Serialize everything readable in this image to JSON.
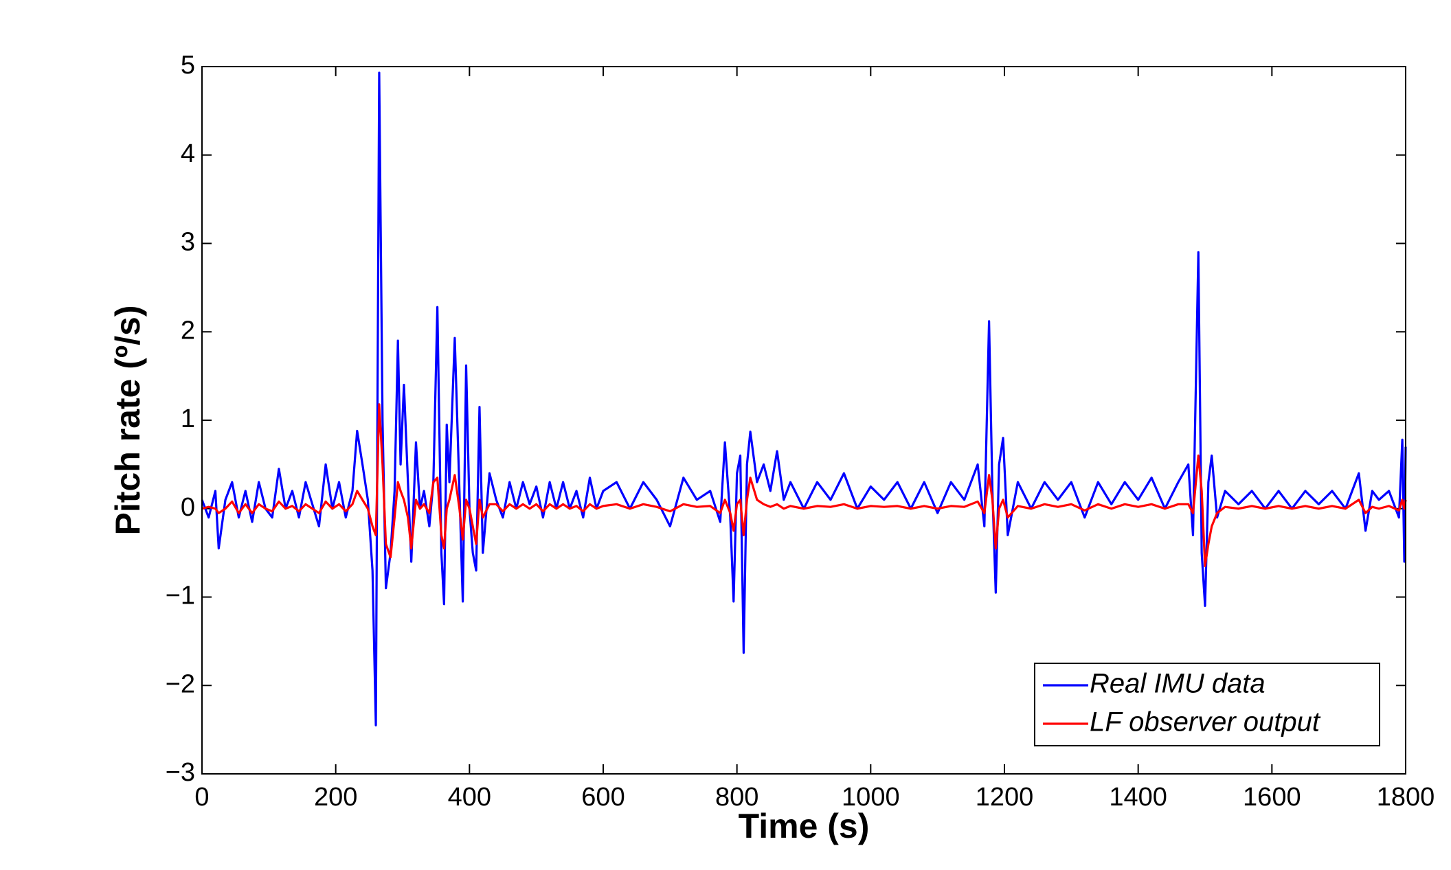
{
  "chart_data": {
    "type": "line",
    "xlabel": "Time (s)",
    "ylabel": "Pitch rate (º/s)",
    "xlim": [
      0,
      1800
    ],
    "ylim": [
      -3,
      5
    ],
    "xticks": [
      0,
      200,
      400,
      600,
      800,
      1000,
      1200,
      1400,
      1600,
      1800
    ],
    "yticks": [
      {
        "value": -3,
        "label": "−3"
      },
      {
        "value": -2,
        "label": "−2"
      },
      {
        "value": -1,
        "label": "−1"
      },
      0,
      1,
      2,
      3,
      4,
      5
    ],
    "grid": false,
    "legend": "lower right",
    "x": [
      0,
      10,
      20,
      25,
      35,
      45,
      55,
      65,
      75,
      85,
      95,
      105,
      115,
      125,
      135,
      145,
      155,
      165,
      175,
      185,
      195,
      205,
      215,
      225,
      232,
      240,
      248,
      255,
      260,
      265,
      270,
      275,
      282,
      288,
      293,
      297,
      302,
      308,
      313,
      320,
      326,
      332,
      340,
      346,
      352,
      358,
      362,
      366,
      370,
      378,
      385,
      390,
      395,
      400,
      405,
      410,
      415,
      420,
      430,
      440,
      450,
      460,
      470,
      480,
      490,
      500,
      510,
      520,
      530,
      540,
      550,
      560,
      570,
      580,
      590,
      600,
      620,
      640,
      660,
      680,
      700,
      720,
      740,
      760,
      775,
      782,
      790,
      795,
      800,
      805,
      810,
      815,
      820,
      830,
      840,
      850,
      860,
      870,
      880,
      900,
      920,
      940,
      960,
      980,
      1000,
      1020,
      1040,
      1060,
      1080,
      1100,
      1120,
      1140,
      1160,
      1170,
      1177,
      1182,
      1187,
      1192,
      1198,
      1205,
      1220,
      1240,
      1260,
      1280,
      1300,
      1320,
      1340,
      1360,
      1380,
      1400,
      1420,
      1440,
      1460,
      1475,
      1482,
      1490,
      1495,
      1500,
      1505,
      1510,
      1518,
      1530,
      1550,
      1570,
      1590,
      1610,
      1630,
      1650,
      1670,
      1690,
      1710,
      1730,
      1740,
      1750,
      1760,
      1775,
      1790,
      1795,
      1798,
      1800
    ],
    "series": [
      {
        "name": "Real IMU data",
        "color": "#0000ff",
        "values": [
          0.1,
          -0.1,
          0.2,
          -0.45,
          0.1,
          0.3,
          -0.1,
          0.2,
          -0.15,
          0.3,
          0,
          -0.1,
          0.45,
          0,
          0.2,
          -0.1,
          0.3,
          0.05,
          -0.2,
          0.5,
          0,
          0.3,
          -0.1,
          0.2,
          0.88,
          0.5,
          0.1,
          -0.7,
          -2.45,
          4.93,
          1.0,
          -0.9,
          -0.5,
          0.2,
          1.9,
          0.5,
          1.4,
          0.3,
          -0.6,
          0.75,
          0,
          0.2,
          -0.2,
          0.3,
          2.28,
          -0.5,
          -1.08,
          0.95,
          0.3,
          1.93,
          0.2,
          -1.05,
          1.62,
          0,
          -0.5,
          -0.7,
          1.15,
          -0.5,
          0.4,
          0.1,
          -0.1,
          0.3,
          0,
          0.3,
          0.05,
          0.25,
          -0.1,
          0.3,
          0,
          0.3,
          0,
          0.2,
          -0.1,
          0.35,
          0,
          0.2,
          0.3,
          0,
          0.3,
          0.1,
          -0.2,
          0.35,
          0.1,
          0.2,
          -0.15,
          0.75,
          -0.1,
          -1.05,
          0.4,
          0.6,
          -1.63,
          0.5,
          0.87,
          0.3,
          0.5,
          0.2,
          0.65,
          0.1,
          0.3,
          0,
          0.3,
          0.1,
          0.4,
          0,
          0.25,
          0.1,
          0.3,
          0,
          0.3,
          -0.05,
          0.3,
          0.1,
          0.5,
          -0.2,
          2.12,
          0.2,
          -0.95,
          0.5,
          0.8,
          -0.3,
          0.3,
          0,
          0.3,
          0.1,
          0.3,
          -0.1,
          0.3,
          0.05,
          0.3,
          0.1,
          0.35,
          0,
          0.3,
          0.5,
          -0.3,
          2.9,
          -0.5,
          -1.1,
          0.3,
          0.6,
          -0.1,
          0.2,
          0.05,
          0.2,
          0,
          0.2,
          0,
          0.2,
          0.05,
          0.2,
          0,
          0.4,
          -0.25,
          0.2,
          0.1,
          0.2,
          -0.1,
          0.78,
          -0.6,
          0.7
        ]
      },
      {
        "name": "LF observer output",
        "color": "#ff0000",
        "values": [
          0,
          0.02,
          0,
          -0.05,
          0,
          0.08,
          -0.05,
          0.05,
          -0.05,
          0.05,
          0,
          -0.03,
          0.08,
          0,
          0.03,
          -0.03,
          0.05,
          0,
          -0.05,
          0.08,
          0,
          0.05,
          -0.03,
          0.05,
          0.2,
          0.1,
          0,
          -0.2,
          -0.3,
          1.18,
          0.5,
          -0.4,
          -0.55,
          -0.1,
          0.3,
          0.2,
          0.1,
          -0.1,
          -0.45,
          0.1,
          0,
          0.05,
          -0.05,
          0.3,
          0.35,
          -0.3,
          -0.45,
          0,
          0.1,
          0.38,
          0,
          -0.35,
          0.1,
          0,
          -0.2,
          -0.4,
          0.1,
          -0.1,
          0.05,
          0.05,
          -0.03,
          0.05,
          0,
          0.05,
          0,
          0.05,
          -0.03,
          0.05,
          0,
          0.05,
          0,
          0.03,
          -0.03,
          0.05,
          0,
          0.03,
          0.05,
          0,
          0.05,
          0.02,
          -0.03,
          0.05,
          0.02,
          0.03,
          -0.05,
          0.1,
          -0.05,
          -0.25,
          0.05,
          0.1,
          -0.3,
          0.1,
          0.35,
          0.1,
          0.05,
          0.02,
          0.05,
          0,
          0.03,
          0,
          0.03,
          0.02,
          0.05,
          0,
          0.03,
          0.02,
          0.03,
          0,
          0.03,
          0,
          0.03,
          0.02,
          0.08,
          -0.05,
          0.38,
          0.1,
          -0.45,
          0,
          0.1,
          -0.1,
          0.03,
          0,
          0.05,
          0.02,
          0.05,
          -0.02,
          0.05,
          0,
          0.05,
          0.02,
          0.05,
          0,
          0.05,
          0.05,
          -0.05,
          0.6,
          0.2,
          -0.65,
          -0.4,
          -0.2,
          -0.05,
          0.02,
          0,
          0.03,
          0,
          0.03,
          0,
          0.03,
          0,
          0.03,
          0,
          0.1,
          -0.05,
          0.02,
          0,
          0.03,
          -0.02,
          0.1,
          0,
          0.1
        ]
      }
    ]
  }
}
